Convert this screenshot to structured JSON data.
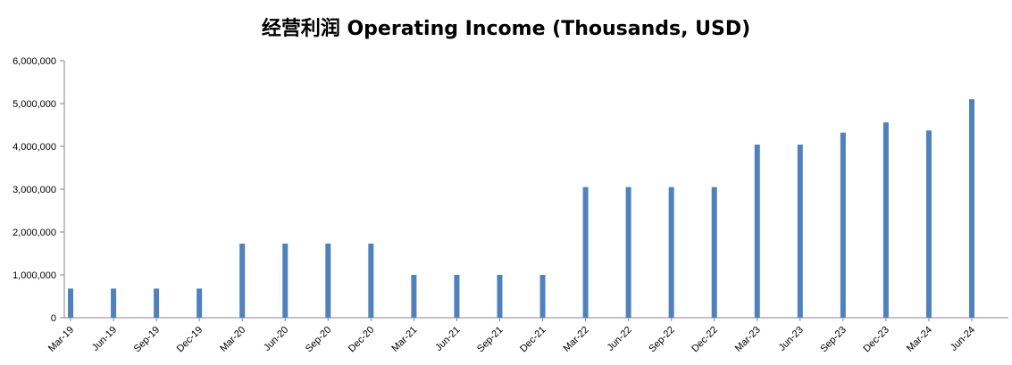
{
  "chart_data": {
    "type": "bar",
    "title": "经营利润 Operating Income (Thousands, USD)",
    "xlabel": "",
    "ylabel": "",
    "ylim": [
      0,
      6000000
    ],
    "yticks": [
      0,
      1000000,
      2000000,
      3000000,
      4000000,
      5000000,
      6000000
    ],
    "ytick_labels": [
      "0",
      "1,000,000",
      "2,000,000",
      "3,000,000",
      "4,000,000",
      "5,000,000",
      "6,000,000"
    ],
    "categories": [
      "Mar-19",
      "Jun-19",
      "Sep-19",
      "Dec-19",
      "Mar-20",
      "Jun-20",
      "Sep-20",
      "Dec-20",
      "Mar-21",
      "Jun-21",
      "Sep-21",
      "Dec-21",
      "Mar-22",
      "Jun-22",
      "Sep-22",
      "Dec-22",
      "Mar-23",
      "Jun-23",
      "Sep-23",
      "Dec-23",
      "Mar-24",
      "Jun-24"
    ],
    "values": [
      680000,
      680000,
      680000,
      680000,
      1730000,
      1730000,
      1730000,
      1730000,
      1000000,
      1000000,
      1000000,
      1000000,
      3050000,
      3050000,
      3050000,
      3050000,
      4040000,
      4040000,
      4320000,
      4560000,
      4370000,
      5100000
    ],
    "grid": false,
    "legend": "none",
    "colors": {
      "bar": "#4F81BD",
      "axis": "#868686",
      "text": "#000000"
    }
  }
}
